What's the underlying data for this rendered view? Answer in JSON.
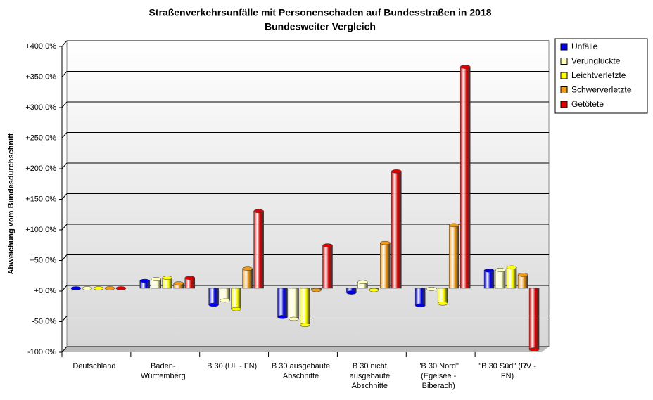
{
  "chart_data": {
    "type": "bar",
    "title": "Straßenverkehrsunfälle mit Personenschaden auf Bundesstraßen in 2018",
    "subtitle": "Bundesweiter Vergleich",
    "y_label": "Abweichung vom Bundesdurchschnitt",
    "categories": [
      "Deutschland",
      "Baden-Württemberg",
      "B 30 (UL - FN)",
      "B 30 ausgebaute Abschnitte",
      "B 30 nicht ausgebaute Abschnitte",
      "\"B 30 Nord\" (Egelsee - Biberach)",
      "\"B 30 Süd\" (RV - FN)"
    ],
    "series": [
      {
        "name": "Unfälle",
        "color": "#0000e8",
        "values": [
          0,
          12,
          -27,
          -47,
          -7,
          -28,
          29
        ]
      },
      {
        "name": "Verunglückte",
        "color": "#ffffc0",
        "values": [
          0,
          15,
          -20,
          -50,
          10,
          -1,
          30
        ]
      },
      {
        "name": "Leichtverletzte",
        "color": "#ffff00",
        "values": [
          0,
          17,
          -34,
          -60,
          -3,
          -25,
          34
        ]
      },
      {
        "name": "Schwerverletzte",
        "color": "#f09a18",
        "values": [
          0,
          8,
          32,
          -3,
          74,
          103,
          22
        ]
      },
      {
        "name": "Getötete",
        "color": "#e00000",
        "values": [
          0,
          17,
          126,
          70,
          191,
          362,
          -100
        ]
      }
    ],
    "ylim": [
      -100,
      400
    ],
    "yticks": [
      {
        "value": -100,
        "label": "-100,0%"
      },
      {
        "value": -50,
        "label": "-50,0%"
      },
      {
        "value": 0,
        "label": "+0,0%"
      },
      {
        "value": 50,
        "label": "+50,0%"
      },
      {
        "value": 100,
        "label": "+100,0%"
      },
      {
        "value": 150,
        "label": "+150,0%"
      },
      {
        "value": 200,
        "label": "+200,0%"
      },
      {
        "value": 250,
        "label": "+250,0%"
      },
      {
        "value": 300,
        "label": "+300,0%"
      },
      {
        "value": 350,
        "label": "+350,0%"
      },
      {
        "value": 400,
        "label": "+400,0%"
      }
    ],
    "grid": true,
    "legend": "right"
  }
}
